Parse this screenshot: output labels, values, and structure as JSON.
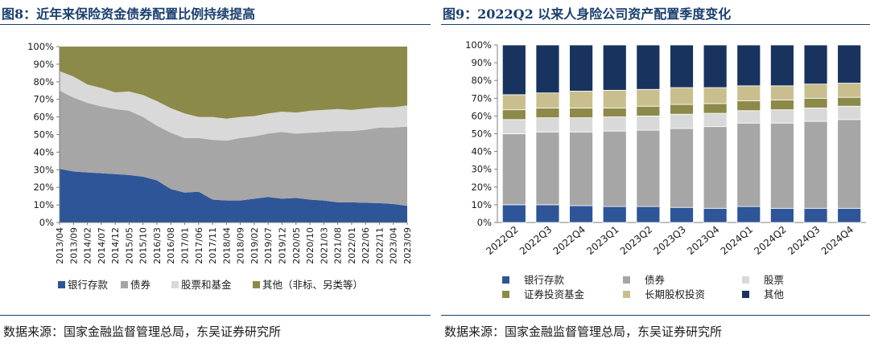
{
  "chart_data": [
    {
      "type": "area",
      "title": "图8：近年来保险资金债券配置比例持续提高",
      "source": "数据来源：国家金融监督管理总局，东吴证券研究所",
      "stacked": true,
      "yticks": [
        "0%",
        "10%",
        "20%",
        "30%",
        "40%",
        "50%",
        "60%",
        "70%",
        "80%",
        "90%",
        "100%"
      ],
      "ylim": [
        0,
        100
      ],
      "x": [
        "2013/04",
        "2013/09",
        "2014/02",
        "2014/07",
        "2014/12",
        "2015/05",
        "2015/10",
        "2016/03",
        "2016/08",
        "2017/01",
        "2017/06",
        "2017/11",
        "2018/04",
        "2018/09",
        "2019/02",
        "2019/07",
        "2019/12",
        "2020/05",
        "2020/10",
        "2021/03",
        "2021/08",
        "2022/01",
        "2022/06",
        "2022/11",
        "2023/04",
        "2023/09"
      ],
      "legend_position": "bottom",
      "series": [
        {
          "name": "银行存款",
          "color": "#2e5597",
          "values": [
            30.5,
            29,
            28.5,
            28,
            27.5,
            27,
            26,
            24,
            19,
            17,
            17.5,
            13,
            12.5,
            12.5,
            13.5,
            14.5,
            13.5,
            14,
            13,
            12.5,
            11.5,
            11.5,
            11.2,
            11,
            10.5,
            9.5
          ]
        },
        {
          "name": "债券",
          "color": "#a6a6a6",
          "values": [
            44.5,
            42,
            39.5,
            38,
            37,
            36.5,
            34,
            31,
            32,
            31,
            30.5,
            34,
            34,
            35.5,
            35.5,
            36,
            38,
            36.5,
            38,
            39,
            40.5,
            40.5,
            41.5,
            43,
            43.5,
            45
          ]
        },
        {
          "name": "股票和基金",
          "color": "#d9d9d9",
          "values": [
            11,
            12,
            10.5,
            10.5,
            9.5,
            11,
            12.5,
            14,
            14,
            14,
            12,
            13,
            12.5,
            12,
            11.5,
            11.5,
            11.5,
            12,
            12.5,
            12.5,
            12.5,
            12,
            12,
            11.5,
            11.5,
            12
          ]
        },
        {
          "name": "其他（非标、另类等）",
          "color": "#8c8a48",
          "values": [
            14,
            17,
            21.5,
            23.5,
            26,
            25.5,
            27.5,
            31,
            35,
            38,
            40,
            40,
            41,
            40,
            39.5,
            38,
            37,
            37.5,
            36.5,
            36,
            35.5,
            36,
            35.3,
            34.5,
            34.5,
            33.5
          ]
        }
      ]
    },
    {
      "type": "bar",
      "title": "图9：2022Q2 以来人身险公司资产配置季度变化",
      "source": "数据来源：国家金融监督管理总局，东吴证券研究所",
      "stacked": true,
      "categories": [
        "2022Q2",
        "2022Q3",
        "2022Q4",
        "2023Q1",
        "2023Q2",
        "2023Q3",
        "2023Q4",
        "2024Q1",
        "2024Q2",
        "2024Q3",
        "2024Q4"
      ],
      "yticks": [
        "0%",
        "10%",
        "20%",
        "30%",
        "40%",
        "50%",
        "60%",
        "70%",
        "80%",
        "90%",
        "100%"
      ],
      "ylim": [
        0,
        100
      ],
      "legend_position": "bottom",
      "series": [
        {
          "name": "银行存款",
          "color": "#2e5597",
          "values": [
            10,
            10,
            9.5,
            9,
            9,
            8.5,
            8,
            9,
            8,
            8,
            8
          ]
        },
        {
          "name": "债券",
          "color": "#a6a6a6",
          "values": [
            40,
            41,
            41.5,
            42.5,
            43,
            44.5,
            46,
            47,
            48,
            49,
            50
          ]
        },
        {
          "name": "股票",
          "color": "#d9d9d9",
          "values": [
            8,
            8,
            8,
            8,
            8,
            8,
            7.5,
            7,
            7.5,
            7.5,
            7.5
          ]
        },
        {
          "name": "证券投资基金",
          "color": "#8c8a48",
          "values": [
            5.5,
            5.5,
            5.5,
            5,
            5.5,
            5.5,
            5.5,
            5.5,
            5.5,
            5.5,
            5
          ]
        },
        {
          "name": "长期股权投资",
          "color": "#c9bf8e",
          "values": [
            8.5,
            8.5,
            9.5,
            10,
            9.5,
            9.5,
            9,
            8.5,
            8,
            8,
            8
          ]
        },
        {
          "name": "其他",
          "color": "#18335e",
          "values": [
            28,
            27,
            26,
            25.5,
            25,
            24,
            24,
            23,
            23,
            22,
            21.5
          ]
        }
      ]
    }
  ]
}
